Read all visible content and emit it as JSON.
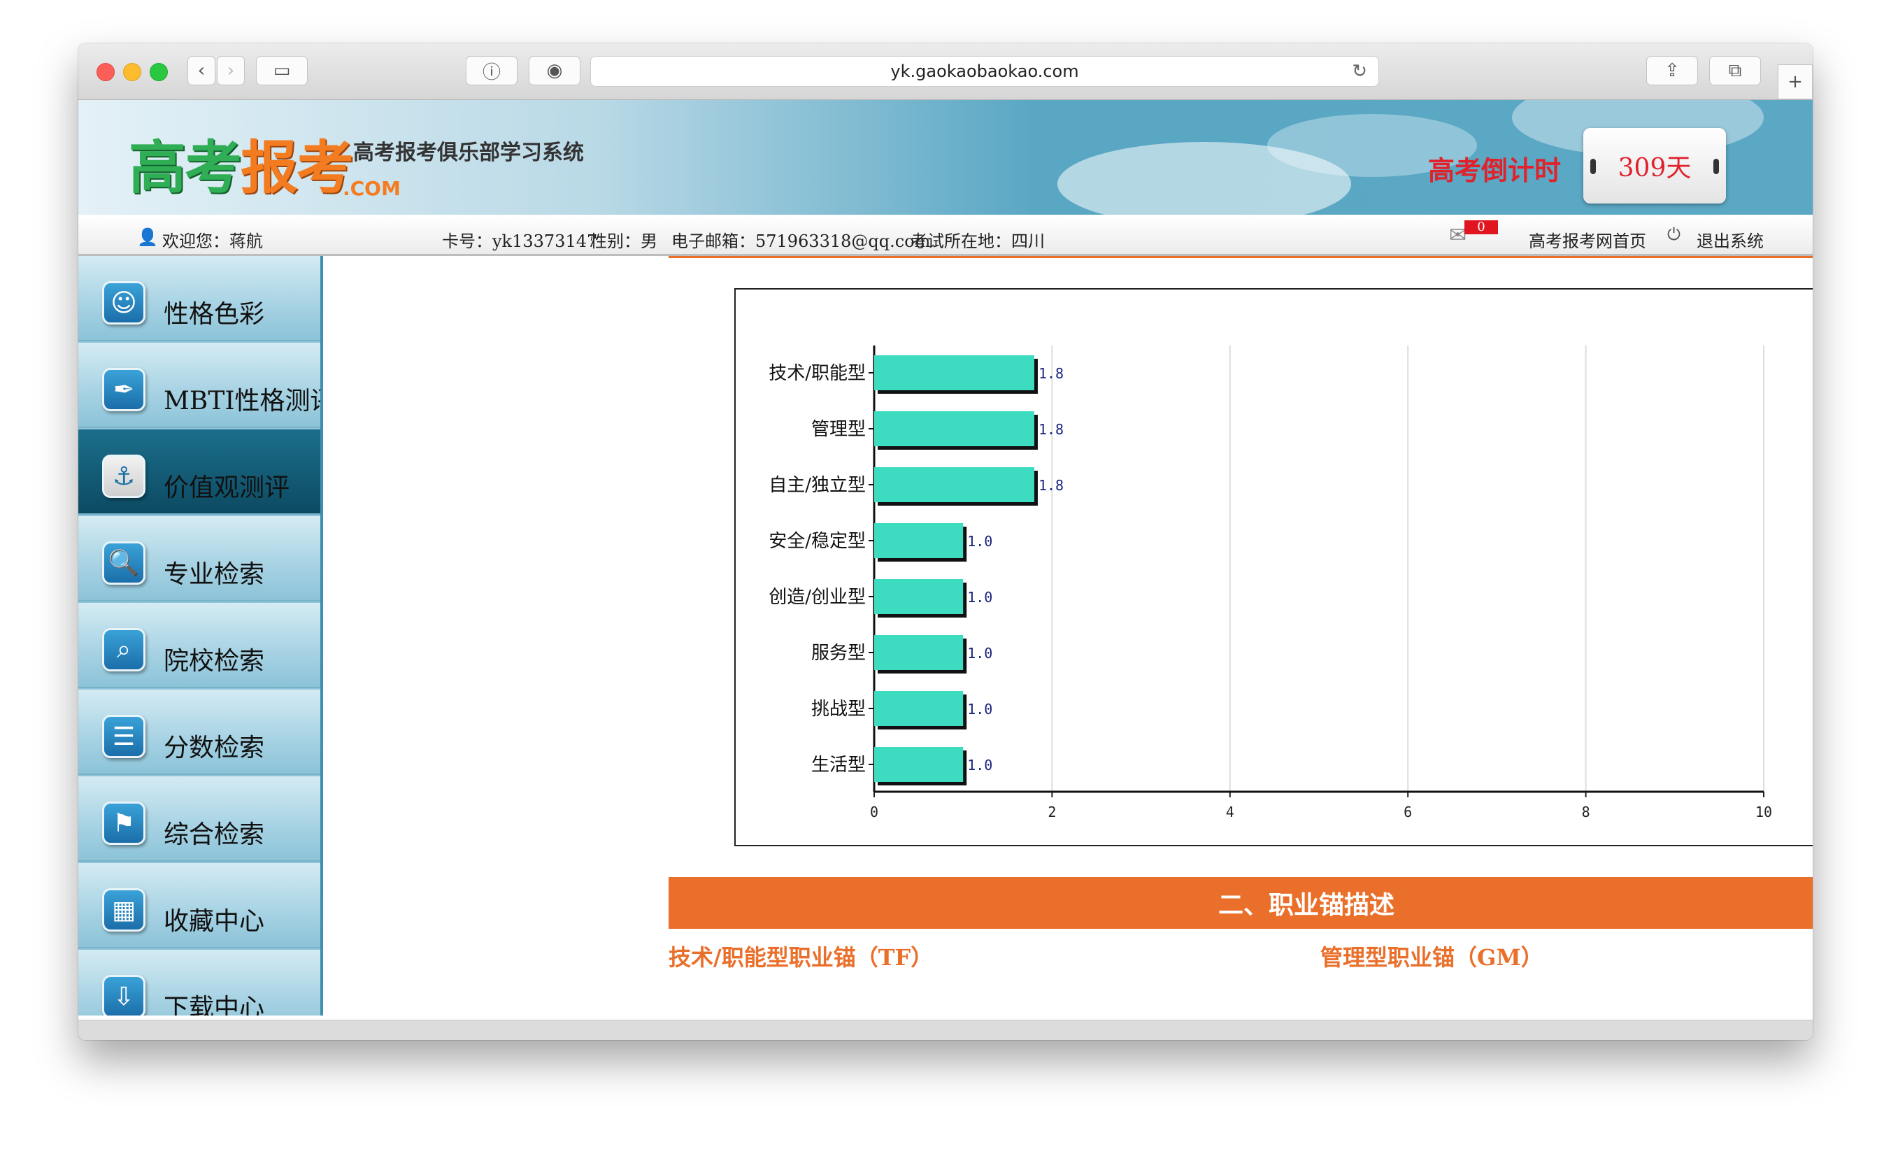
{
  "browser": {
    "url": "yk.gaokaobaokao.com"
  },
  "header": {
    "logo_part1": "高考",
    "logo_part2": "报考",
    "logo_suffix": ".COM",
    "slogan": "高考报考俱乐部学习系统",
    "countdown_label": "高考倒计时",
    "countdown_value": "309天"
  },
  "infobar": {
    "welcome": "欢迎您：蒋航",
    "card": "卡号：yk13373147",
    "gender": "性别：男",
    "email": "电子邮箱：571963318@qq.com",
    "exam_location": "考试所在地：四川",
    "mail_count": "0",
    "home_link": "高考报考网首页",
    "logout": "退出系统"
  },
  "sidebar": {
    "items": [
      {
        "label": "性格色彩",
        "icon": "mask-icon"
      },
      {
        "label": "MBTI性格测评",
        "icon": "feather-icon"
      },
      {
        "label": "价值观测评",
        "icon": "anchor-icon"
      },
      {
        "label": "专业检索",
        "icon": "document-search-icon"
      },
      {
        "label": "院校检索",
        "icon": "school-search-icon"
      },
      {
        "label": "分数检索",
        "icon": "list-icon"
      },
      {
        "label": "综合检索",
        "icon": "signpost-icon"
      },
      {
        "label": "收藏中心",
        "icon": "building-icon"
      },
      {
        "label": "下载中心",
        "icon": "download-icon"
      }
    ],
    "active_index": 2
  },
  "chart_data": {
    "type": "bar",
    "orientation": "horizontal",
    "categories": [
      "技术/职能型",
      "管理型",
      "自主/独立型",
      "安全/稳定型",
      "创造/创业型",
      "服务型",
      "挑战型",
      "生活型"
    ],
    "values": [
      1.8,
      1.8,
      1.8,
      1.0,
      1.0,
      1.0,
      1.0,
      1.0
    ],
    "value_labels": [
      "1.8",
      "1.8",
      "1.8",
      "1.0",
      "1.0",
      "1.0",
      "1.0",
      "1.0"
    ],
    "xlim": [
      0,
      10
    ],
    "xticks": [
      "0",
      "2",
      "4",
      "6",
      "8",
      "10"
    ],
    "grid": true,
    "bar_color": "#3ddcc0"
  },
  "section": {
    "title": "二、职业锚描述",
    "anchor_left": "技术/职能型职业锚（TF）",
    "anchor_right": "管理型职业锚（GM）"
  },
  "colors": {
    "accent": "#ea6f2a",
    "countdown": "#e0222c"
  }
}
